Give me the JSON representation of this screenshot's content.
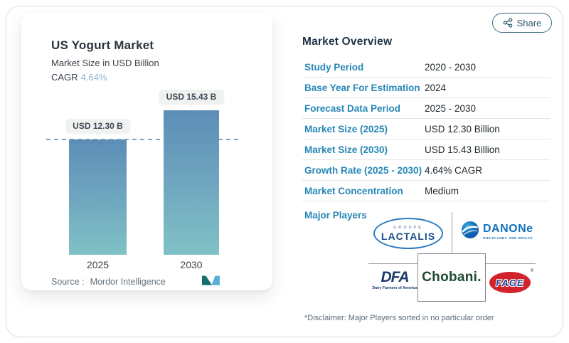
{
  "share": {
    "label": "Share"
  },
  "chart_card": {
    "title": "US Yogurt Market",
    "subtitle": "Market Size in USD Billion",
    "cagr_label": "CAGR",
    "cagr_value": "4.64%",
    "source_label": "Source :",
    "source_value": "Mordor Intelligence"
  },
  "chart_data": {
    "type": "bar",
    "title": "US Yogurt Market",
    "xlabel": "",
    "ylabel": "Market Size in USD Billion",
    "categories": [
      "2025",
      "2030"
    ],
    "values": [
      12.3,
      15.43
    ],
    "bar_labels": [
      "USD 12.30 B",
      "USD 15.43 B"
    ],
    "ylim": [
      0,
      15.43
    ],
    "grid": false,
    "reference_line": {
      "y": 12.3,
      "style": "dashed"
    },
    "colors": {
      "bar_top": "#5d8db6",
      "bar_bottom": "#80c1c6",
      "dashed_line": "#82a6b6"
    }
  },
  "overview": {
    "heading": "Market Overview",
    "rows": [
      {
        "label": "Study Period",
        "value": "2020 - 2030"
      },
      {
        "label": "Base Year For Estimation",
        "value": "2024"
      },
      {
        "label": "Forecast Data Period",
        "value": "2025 - 2030"
      },
      {
        "label": "Market Size (2025)",
        "value": "USD 12.30 Billion"
      },
      {
        "label": "Market Size (2030)",
        "value": "USD 15.43 Billion"
      },
      {
        "label": "Growth Rate (2025 - 2030)",
        "value": "4.64% CAGR"
      },
      {
        "label": "Market Concentration",
        "value": "Medium"
      }
    ],
    "major_players_label": "Major Players",
    "players": [
      "Groupe Lactalis",
      "Danone",
      "Dairy Farmers of America",
      "Chobani",
      "FAGE"
    ],
    "disclaimer": "*Disclaimer: Major Players sorted in no particular order"
  },
  "logos": {
    "lactalis": {
      "top": "GROUPE",
      "name": "LACTALIS"
    },
    "danone": {
      "name": "DANONe",
      "tagline": "ONE PLANET. ONE HEALTH"
    },
    "dfa": {
      "name": "DFA",
      "tagline": "Dairy Farmers of America"
    },
    "chobani": {
      "name": "Chobani."
    },
    "fage": {
      "name": "FAGE",
      "reg": "®"
    }
  },
  "colors": {
    "accent_blue": "#2787b6",
    "heading_navy": "#1d3347",
    "cagr_value": "#8fb3cc",
    "divider": "#e2e6e9",
    "mordor_teal": "#11706b",
    "mordor_blue": "#57aed6",
    "chobani_green": "#1d4a31",
    "fage_red": "#d2232a",
    "fage_blue": "#1b3f94",
    "dfa_navy": "#1b3a6b",
    "danone_blue": "#1273bd",
    "lactalis_blue": "#1d4e89"
  }
}
